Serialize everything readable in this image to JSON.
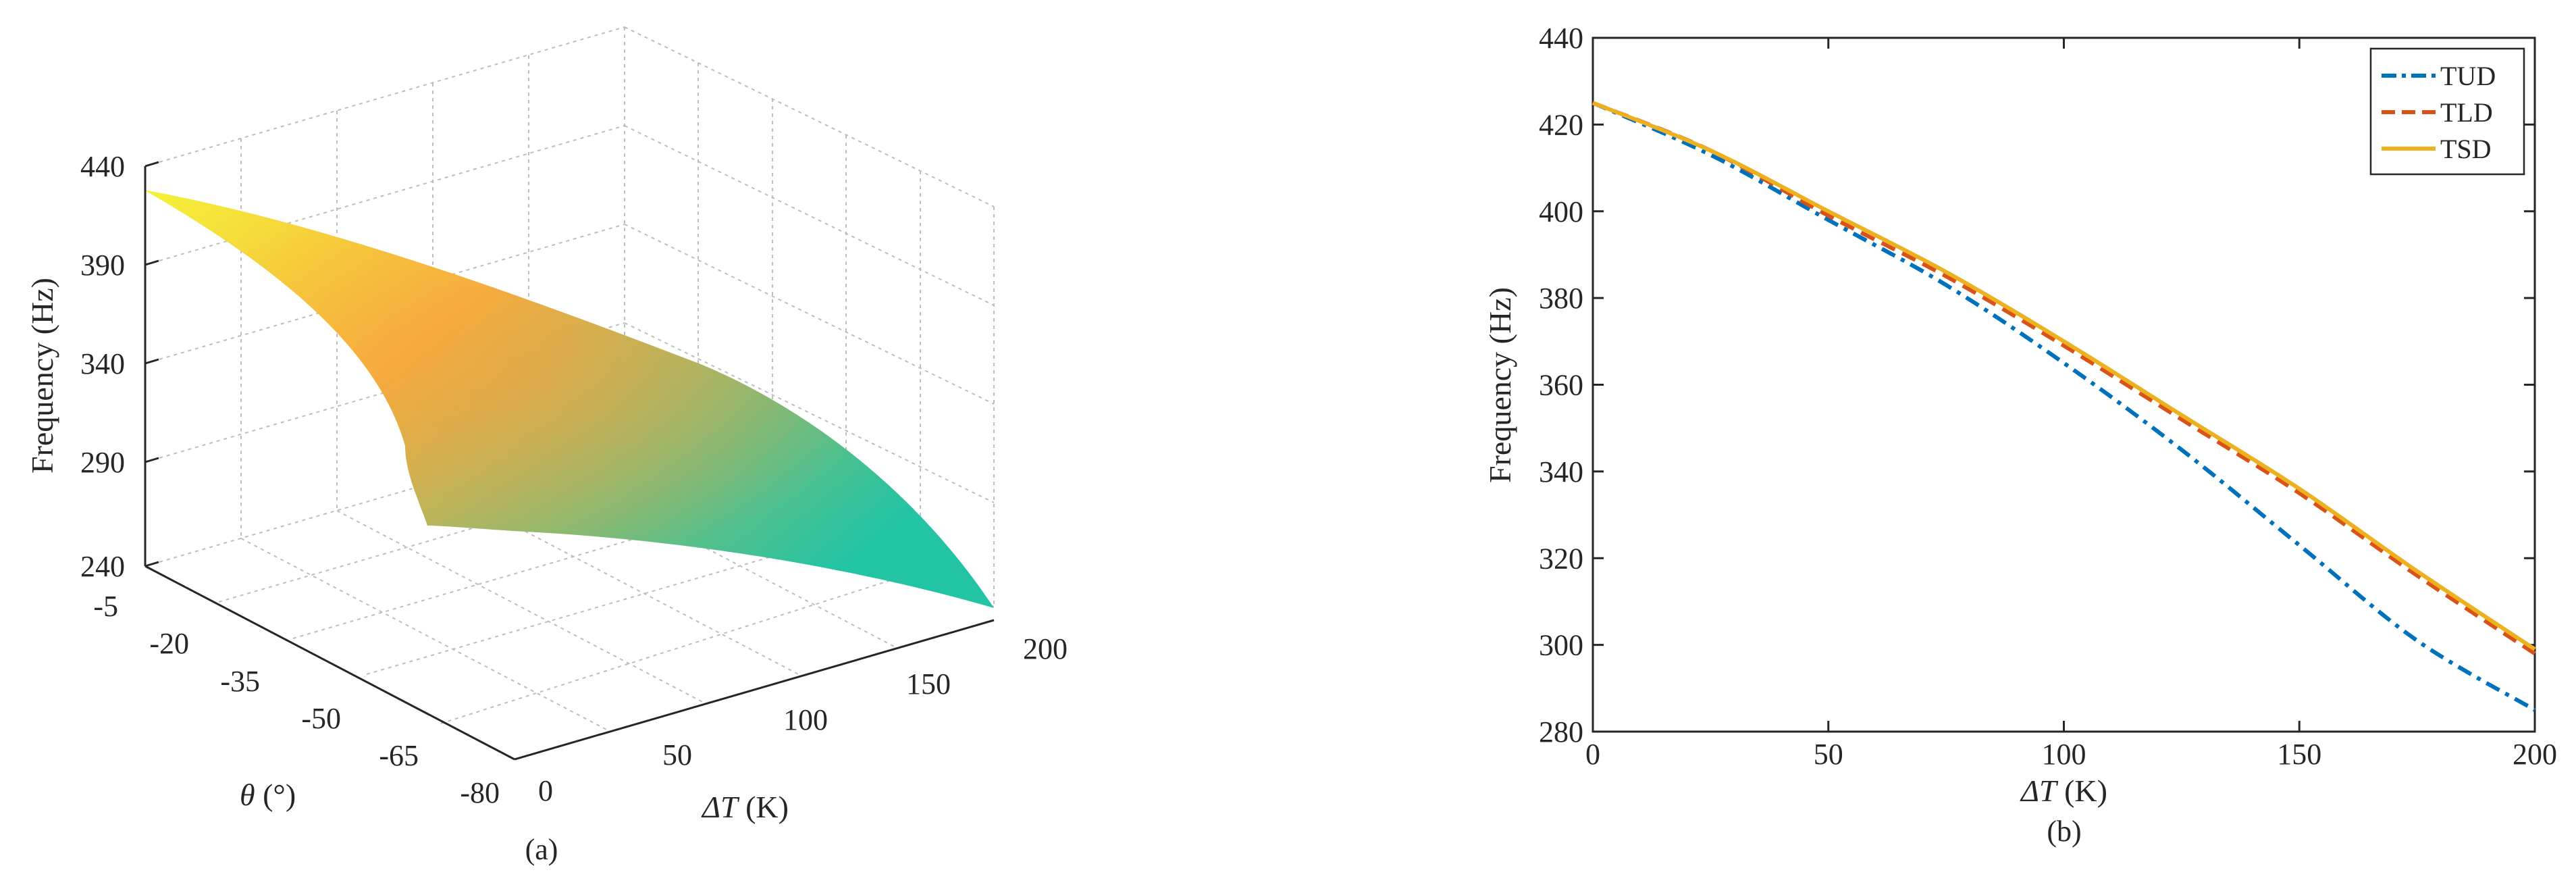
{
  "charts": {
    "a": {
      "caption": "(a)",
      "zlabel": "Frequency (Hz)",
      "xlabel_symbol": "ΔT",
      "xlabel_unit": " (K)",
      "ylabel_symbol": "θ",
      "ylabel_unit": " (°)",
      "z_ticks": [
        "240",
        "290",
        "340",
        "390",
        "440"
      ],
      "x_ticks": [
        "0",
        "50",
        "100",
        "150",
        "200"
      ],
      "y_ticks": [
        "-5",
        "-20",
        "-35",
        "-50",
        "-65",
        "-80"
      ]
    },
    "b": {
      "caption": "(b)",
      "ylabel": "Frequency (Hz)",
      "xlabel_symbol": "ΔT",
      "xlabel_unit": " (K)",
      "legend": [
        "TUD",
        "TLD",
        "TSD"
      ]
    }
  },
  "colors": {
    "tud": "#0072BD",
    "tld": "#D95319",
    "tsd": "#EDB120",
    "surface_high": "#F5F238",
    "surface_mid": "#F6B13E",
    "surface_low": "#22C4A4"
  },
  "chart_data": [
    {
      "type": "surface",
      "x_name": "ΔT (K)",
      "y_name": "θ (°)",
      "z_name": "Frequency (Hz)",
      "xlim": [
        0,
        200
      ],
      "ylim": [
        -80,
        -5
      ],
      "zlim": [
        240,
        440
      ],
      "x_ticks": [
        0,
        50,
        100,
        150,
        200
      ],
      "y_ticks": [
        -5,
        -20,
        -35,
        -50,
        -65,
        -80
      ],
      "z_ticks": [
        240,
        290,
        340,
        390,
        440
      ],
      "corners": [
        {
          "x": 0,
          "y": -5,
          "z": 425
        },
        {
          "x": 200,
          "y": -5,
          "z": 300
        },
        {
          "x": 0,
          "y": -80,
          "z": 275
        },
        {
          "x": 200,
          "y": -80,
          "z": 243
        }
      ],
      "grid": true
    },
    {
      "type": "line",
      "xlim": [
        0,
        200
      ],
      "ylim": [
        280,
        440
      ],
      "x_ticks": [
        0,
        50,
        100,
        150,
        200
      ],
      "y_ticks": [
        280,
        300,
        320,
        340,
        360,
        380,
        400,
        420,
        440
      ],
      "legend_position": "top-right",
      "x": [
        0,
        25,
        50,
        75,
        100,
        125,
        150,
        175,
        200
      ],
      "series": [
        {
          "name": "TUD",
          "style": "dash-dot",
          "values": [
            425,
            413,
            398,
            383,
            365,
            345,
            323,
            301,
            285
          ]
        },
        {
          "name": "TLD",
          "style": "dashed",
          "values": [
            425,
            414,
            399,
            385,
            369,
            352,
            335,
            316,
            298
          ]
        },
        {
          "name": "TSD",
          "style": "solid",
          "values": [
            425,
            414,
            400,
            386,
            370,
            353,
            336,
            317,
            299
          ]
        }
      ]
    }
  ]
}
